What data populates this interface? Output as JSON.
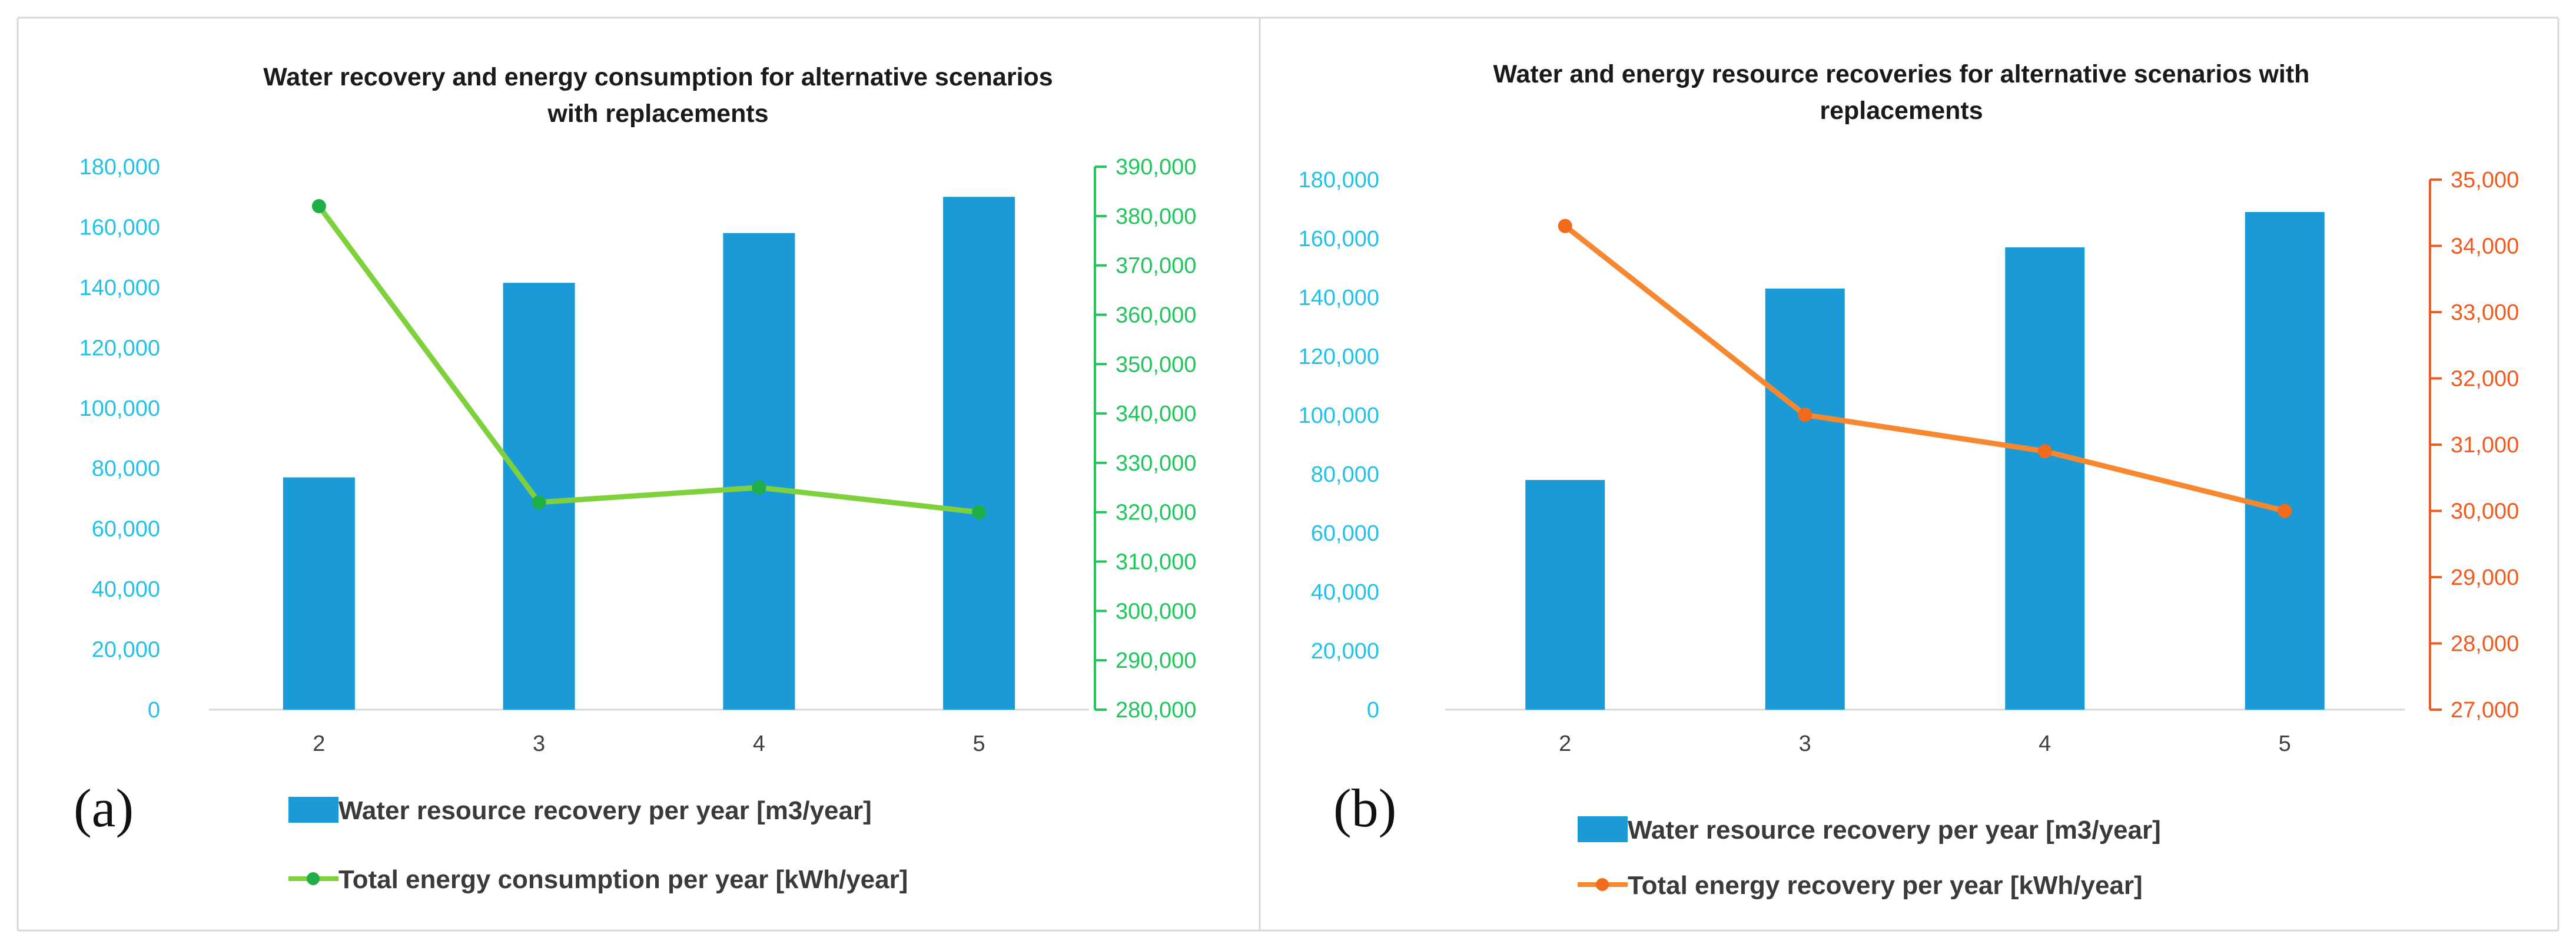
{
  "chart_data": [
    {
      "panel_label": "(a)",
      "type": "bar+line",
      "title": [
        "Water recovery and energy consumption for alternative scenarios",
        "with replacements"
      ],
      "categories": [
        "2",
        "3",
        "4",
        "5"
      ],
      "y_left": {
        "min": 0,
        "max": 180000,
        "step": 20000,
        "tick_labels": [
          "0",
          "20,000",
          "40,000",
          "60,000",
          "80,000",
          "100,000",
          "120,000",
          "140,000",
          "160,000",
          "180,000"
        ],
        "color": "#22c1e8"
      },
      "y_right": {
        "min": 280000,
        "max": 390000,
        "step": 10000,
        "tick_labels": [
          "280,000",
          "290,000",
          "300,000",
          "310,000",
          "320,000",
          "330,000",
          "340,000",
          "350,000",
          "360,000",
          "370,000",
          "380,000",
          "390,000"
        ],
        "color": "#1fc65a"
      },
      "bar_series": {
        "name": "Water resource recovery per year [m3/year]",
        "values": [
          77000,
          141500,
          158000,
          170000
        ],
        "color": "#1a9bd7"
      },
      "line_series": {
        "name": "Total energy consumption per year [kWh/year]",
        "values": [
          382000,
          322000,
          325000,
          320000
        ],
        "color": "#7fd13b",
        "marker_color": "#1fae48"
      },
      "grid": false,
      "legend_position": "bottom"
    },
    {
      "panel_label": "(b)",
      "type": "bar+line",
      "title": [
        "Water and energy resource recoveries for alternative scenarios with",
        "replacements"
      ],
      "categories": [
        "2",
        "3",
        "4",
        "5"
      ],
      "y_left": {
        "min": 0,
        "max": 180000,
        "step": 20000,
        "tick_labels": [
          "0",
          "20,000",
          "40,000",
          "60,000",
          "80,000",
          "100,000",
          "120,000",
          "140,000",
          "160,000",
          "180,000"
        ],
        "color": "#22c1e8"
      },
      "y_right": {
        "min": 27000,
        "max": 35000,
        "step": 1000,
        "tick_labels": [
          "27,000",
          "28,000",
          "29,000",
          "30,000",
          "31,000",
          "32,000",
          "33,000",
          "34,000",
          "35,000"
        ],
        "color": "#f05a1e"
      },
      "bar_series": {
        "name": "Water resource recovery per year [m3/year]",
        "values": [
          78000,
          143000,
          157000,
          169000
        ],
        "color": "#1a9bd7"
      },
      "line_series": {
        "name": "Total energy recovery per year [kWh/year]",
        "values": [
          34300,
          31450,
          30900,
          30000
        ],
        "color": "#f7882f",
        "marker_color": "#f26a1b"
      },
      "grid": false,
      "legend_position": "bottom"
    }
  ]
}
